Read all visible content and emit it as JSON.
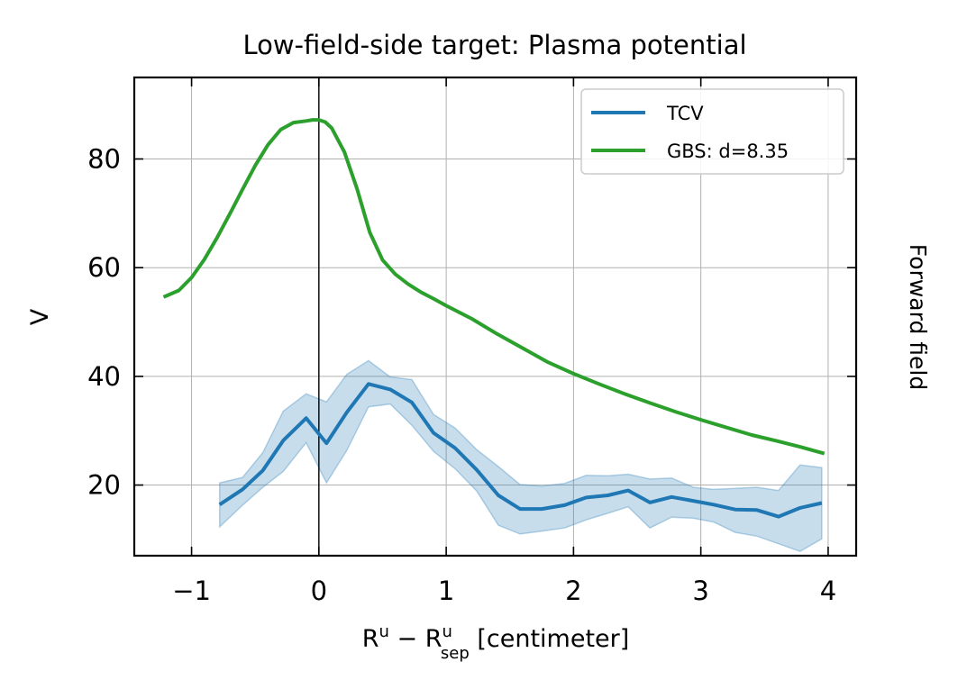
{
  "chart_data": {
    "type": "line",
    "title": "Low-field-side target: Plasma potential",
    "xlabel": {
      "base": "R",
      "sup1": "u",
      "minus": " − ",
      "sup2": "u",
      "sub2": "sep",
      "unit": " [centimeter]"
    },
    "ylabel": "V",
    "side_label": "Forward field",
    "xlim": [
      -1.45,
      4.22
    ],
    "ylim": [
      7,
      95
    ],
    "xticks": [
      -1,
      0,
      1,
      2,
      3,
      4
    ],
    "xtick_labels": [
      "−1",
      "0",
      "1",
      "2",
      "3",
      "4"
    ],
    "yticks": [
      20,
      40,
      60,
      80
    ],
    "ytick_labels": [
      "20",
      "40",
      "60",
      "80"
    ],
    "grid": true,
    "vline_x": 0,
    "legend_position": "top-right",
    "series": [
      {
        "name": "TCV",
        "color": "#1f77b4",
        "band_color": "#1f77b4",
        "x": [
          -0.78,
          -0.6,
          -0.44,
          -0.28,
          -0.1,
          0.06,
          0.22,
          0.39,
          0.56,
          0.73,
          0.9,
          1.07,
          1.24,
          1.41,
          1.58,
          1.75,
          1.93,
          2.1,
          2.27,
          2.43,
          2.6,
          2.77,
          2.94,
          3.1,
          3.27,
          3.44,
          3.61,
          3.78,
          3.95
        ],
        "values": [
          16.4,
          19.2,
          22.7,
          28.2,
          32.3,
          27.7,
          33.4,
          38.6,
          37.6,
          35.2,
          29.6,
          26.8,
          22.8,
          18.1,
          15.6,
          15.6,
          16.3,
          17.7,
          18.1,
          19.0,
          16.8,
          17.8,
          17.1,
          16.4,
          15.5,
          15.4,
          14.2,
          15.8,
          16.7
        ],
        "upper": [
          20.4,
          21.4,
          26.0,
          33.6,
          36.8,
          35.3,
          40.4,
          42.9,
          39.9,
          39.4,
          33.0,
          30.5,
          26.5,
          23.4,
          20.1,
          19.8,
          20.3,
          21.8,
          21.7,
          22.0,
          21.1,
          21.3,
          19.6,
          19.2,
          19.4,
          19.6,
          19.0,
          23.7,
          23.2
        ],
        "lower": [
          12.3,
          16.3,
          19.6,
          22.5,
          27.8,
          20.4,
          26.4,
          34.4,
          34.9,
          31.0,
          26.2,
          23.0,
          18.9,
          12.6,
          11.0,
          11.5,
          12.1,
          13.6,
          14.8,
          16.0,
          12.1,
          14.1,
          13.9,
          13.2,
          11.3,
          10.6,
          9.2,
          7.8,
          10.1
        ]
      },
      {
        "name": "GBS: d=8.35",
        "color": "#2ca02c",
        "x": [
          -1.22,
          -1.1,
          -1.0,
          -0.9,
          -0.8,
          -0.7,
          -0.6,
          -0.5,
          -0.4,
          -0.3,
          -0.2,
          -0.1,
          -0.05,
          0.0,
          0.05,
          0.1,
          0.2,
          0.3,
          0.4,
          0.5,
          0.6,
          0.7,
          0.8,
          0.9,
          1.0,
          1.2,
          1.4,
          1.6,
          1.8,
          2.0,
          2.2,
          2.4,
          2.6,
          2.8,
          3.0,
          3.2,
          3.4,
          3.6,
          3.8,
          3.97
        ],
        "values": [
          54.6,
          55.8,
          58.2,
          61.5,
          65.5,
          69.9,
          74.4,
          78.8,
          82.6,
          85.4,
          86.7,
          87.0,
          87.2,
          87.2,
          86.8,
          85.7,
          81.3,
          74.5,
          66.5,
          61.4,
          58.8,
          57.0,
          55.5,
          54.3,
          53.0,
          50.6,
          47.8,
          45.2,
          42.6,
          40.5,
          38.6,
          36.8,
          35.1,
          33.5,
          32.0,
          30.6,
          29.2,
          28.1,
          26.9,
          25.8
        ]
      }
    ]
  }
}
